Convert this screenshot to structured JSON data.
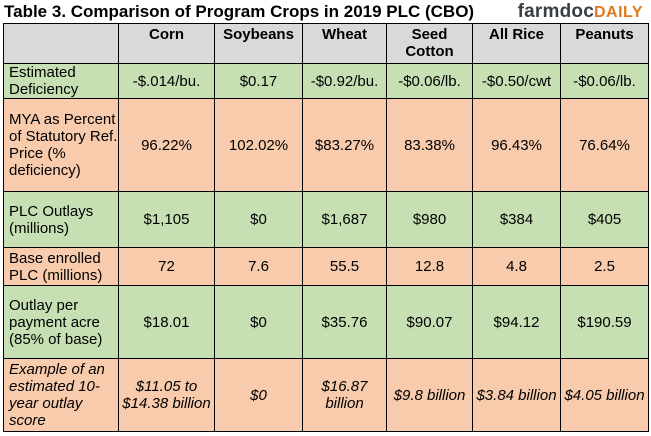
{
  "title": "Table 3. Comparison of Program Crops in 2019 PLC (CBO)",
  "brand": {
    "main": "farmdoc",
    "accent": "DAILY"
  },
  "columns": [
    "Corn",
    "Soybeans",
    "Wheat",
    "Seed\nCotton",
    "All Rice",
    "Peanuts"
  ],
  "rows": [
    {
      "label": "Estimated Deficiency",
      "values": [
        "-$.014/bu.",
        "$0.17",
        "-$0.92/bu.",
        "-$0.06/lb.",
        "-$0.50/cwt",
        "-$0.06/lb."
      ]
    },
    {
      "label": "MYA as Percent of Statutory Ref. Price (% deficiency)",
      "values": [
        "96.22%",
        "102.02%",
        "$83.27%",
        "83.38%",
        "96.43%",
        "76.64%"
      ]
    },
    {
      "label": "PLC Outlays (millions)",
      "values": [
        "$1,105",
        "$0",
        "$1,687",
        "$980",
        "$384",
        "$405"
      ]
    },
    {
      "label": "Base enrolled PLC (millions)",
      "values": [
        "72",
        "7.6",
        "55.5",
        "12.8",
        "4.8",
        "2.5"
      ]
    },
    {
      "label": "Outlay per payment acre (85% of base)",
      "values": [
        "$18.01",
        "$0",
        "$35.76",
        "$90.07",
        "$94.12",
        "$190.59"
      ]
    },
    {
      "label": "Example of an estimated 10-year outlay score",
      "values": [
        "$11.05 to $14.38 billion",
        "$0",
        "$16.87 billion",
        "$9.8 billion",
        "$3.84 billion",
        "$4.05 billion"
      ]
    }
  ],
  "colors": {
    "header": "#d9d9d9",
    "green": "#c6e0b4",
    "peach": "#f8cbad",
    "brand_accent": "#e07a1f"
  }
}
